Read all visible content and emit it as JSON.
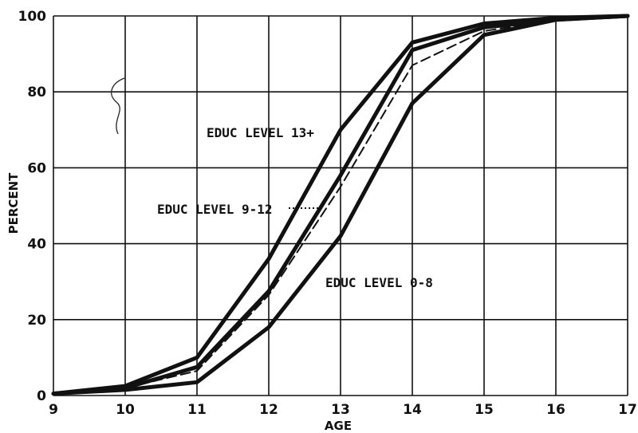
{
  "chart_data": {
    "type": "line",
    "xlabel": "AGE",
    "ylabel": "PERCENT",
    "xlim": [
      9,
      17
    ],
    "ylim": [
      0,
      100
    ],
    "grid": true,
    "x_ticks": [
      9,
      10,
      11,
      12,
      13,
      14,
      15,
      16,
      17
    ],
    "y_ticks": [
      0,
      20,
      40,
      60,
      80,
      100
    ],
    "x": [
      9,
      10,
      11,
      12,
      13,
      14,
      15,
      16,
      17
    ],
    "series": [
      {
        "name": "EDUC LEVEL 13+",
        "style": "solid",
        "values": [
          0.5,
          2.5,
          10,
          36,
          70,
          93,
          98,
          99.5,
          100
        ]
      },
      {
        "name": "EDUC LEVEL 9-12",
        "style": "solid",
        "values": [
          0.5,
          2,
          7.5,
          27.5,
          58,
          91,
          97,
          99,
          100
        ]
      },
      {
        "name": "",
        "style": "dashed",
        "values": [
          0.5,
          2,
          6.5,
          26.5,
          55,
          87,
          96,
          99,
          100
        ]
      },
      {
        "name": "EDUC LEVEL 0-8",
        "style": "solid",
        "values": [
          0.5,
          1.5,
          3.5,
          18,
          42,
          77,
          95,
          99,
          100
        ]
      }
    ],
    "annotations": [
      "EDUC LEVEL 13+",
      "EDUC LEVEL 9-12",
      "EDUC LEVEL 0-8"
    ]
  }
}
